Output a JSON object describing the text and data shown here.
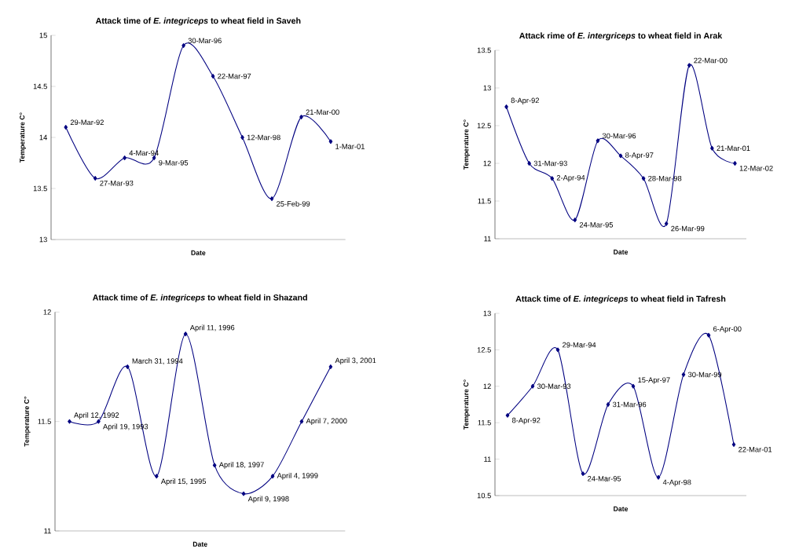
{
  "chart_data": [
    {
      "type": "line",
      "title": "Attack time of *E. integriceps* to wheat field in Saveh",
      "xlabel": "Date",
      "ylabel": "Temperature C°",
      "categories": [
        null,
        null,
        null,
        null,
        null,
        null,
        null,
        null,
        null,
        null
      ],
      "values": [
        14.1,
        13.6,
        13.8,
        13.8,
        14.9,
        14.6,
        14.0,
        13.4,
        14.2,
        13.96
      ],
      "value_labels": [
        "29-Mar-92",
        "27-Mar-93",
        "4-Mar-94",
        "9-Mar-95",
        "30-Mar-96",
        "22-Mar-97",
        "12-Mar-98",
        "25-Feb-99",
        "21-Mar-00",
        "1-Mar-01"
      ],
      "color": "#000080",
      "marker": "diamond",
      "line_style": "solid",
      "ylim": [
        13,
        15
      ],
      "yticks": [
        13,
        13.5,
        14,
        14.5,
        15
      ],
      "tick_labels": "y"
    },
    {
      "type": "line",
      "title": "Attack rime of *E. intergriceps* to wheat field in Arak",
      "xlabel": "Date",
      "ylabel": "Temperature C°",
      "categories": [
        null,
        null,
        null,
        null,
        null,
        null,
        null,
        null,
        null,
        null,
        null
      ],
      "values": [
        12.75,
        12.0,
        11.8,
        11.25,
        12.3,
        12.1,
        11.8,
        11.2,
        13.3,
        12.2,
        12.0
      ],
      "value_labels": [
        "8-Apr-92",
        "31-Mar-93",
        "2-Apr-94",
        "24-Mar-95",
        "30-Mar-96",
        "8-Apr-97",
        "28-Mar-98",
        "26-Mar-99",
        "22-Mar-00",
        "21-Mar-01",
        "12-Mar-02"
      ],
      "color": "#000080",
      "marker": "diamond",
      "line_style": "solid",
      "ylim": [
        11,
        13.5
      ],
      "yticks": [
        11,
        11.5,
        12,
        12.5,
        13,
        13.5
      ],
      "tick_labels": "y"
    },
    {
      "type": "line",
      "title": "Attack time of *E. integriceps* to wheat field in Shazand",
      "xlabel": "Date",
      "ylabel": "Temperature C°",
      "categories": [
        null,
        null,
        null,
        null,
        null,
        null,
        null,
        null,
        null,
        null
      ],
      "values": [
        11.5,
        11.5,
        11.75,
        11.25,
        11.9,
        11.3,
        11.17,
        11.25,
        11.5,
        11.75
      ],
      "value_labels": [
        "April 12, 1992",
        "April 19, 1993",
        "March 31, 1994",
        "April 15, 1995",
        "April 11, 1996",
        "April 18, 1997",
        "April 9, 1998",
        "April 4, 1999",
        "April 7, 2000",
        "April 3, 2001"
      ],
      "color": "#000080",
      "marker": "diamond",
      "line_style": "solid",
      "ylim": [
        11,
        12
      ],
      "yticks": [
        11,
        11.5,
        12
      ],
      "tick_labels": "y"
    },
    {
      "type": "line",
      "title": "Attack time of *E. integriceps* to wheat field in Tafresh",
      "xlabel": "Date",
      "ylabel": "Temperature C°",
      "categories": [
        null,
        null,
        null,
        null,
        null,
        null,
        null,
        null,
        null,
        null
      ],
      "values": [
        11.6,
        12.0,
        12.5,
        10.8,
        11.75,
        12.0,
        10.75,
        12.16,
        12.7,
        11.2
      ],
      "value_labels": [
        "8-Apr-92",
        "30-Mar-93",
        "29-Mar-94",
        "24-Mar-95",
        "31-Mar-96",
        "15-Apr-97",
        "4-Apr-98",
        "30-Mar-99",
        "6-Apr-00",
        "22-Mar-01"
      ],
      "color": "#000080",
      "marker": "diamond",
      "line_style": "solid",
      "ylim": [
        10.5,
        13
      ],
      "yticks": [
        10.5,
        11,
        11.5,
        12,
        12.5,
        13
      ],
      "tick_labels": "y"
    }
  ]
}
